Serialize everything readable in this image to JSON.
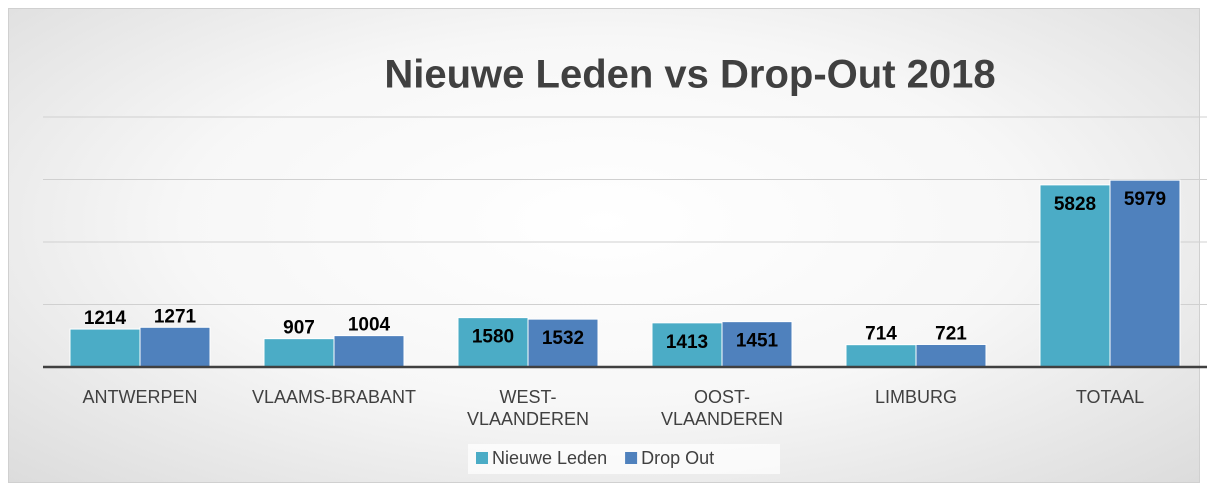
{
  "chart_data": {
    "type": "bar",
    "title": "Nieuwe Leden vs Drop-Out 2018",
    "categories": [
      "ANTWERPEN",
      "VLAAMS-BRABANT",
      "WEST-\nVLAANDEREN",
      "OOST-\nVLAANDEREN",
      "LIMBURG",
      "TOTAAL"
    ],
    "series": [
      {
        "name": "Nieuwe Leden",
        "color": "#4bacc6",
        "values": [
          1214,
          907,
          1580,
          1413,
          714,
          5828
        ]
      },
      {
        "name": "Drop Out",
        "color": "#4f81bd",
        "values": [
          1271,
          1004,
          1532,
          1451,
          721,
          5979
        ]
      }
    ],
    "ylim": [
      0,
      8000
    ],
    "yticks": [
      0,
      2000,
      4000,
      6000,
      8000
    ],
    "grid": true,
    "legend": "bottom"
  }
}
